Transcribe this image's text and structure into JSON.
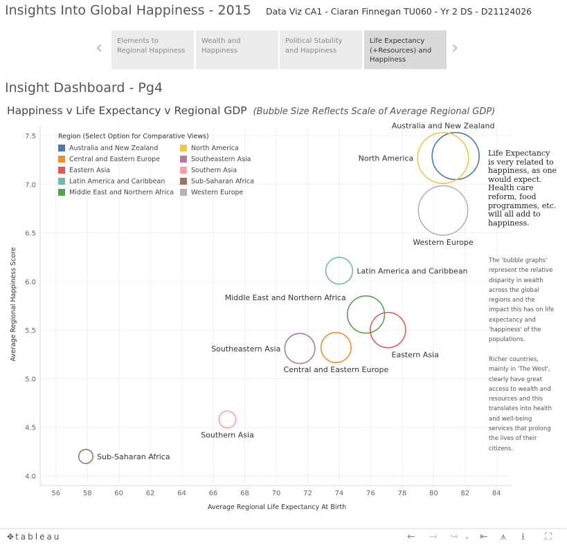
{
  "header": {
    "title": "Insights Into Global Happiness - 2015",
    "subtitle": "Data Viz CA1 - Ciaran Finnegan TU060 - Yr 2 DS - D21124026"
  },
  "nav": {
    "prev_icon": "chevron-left-icon",
    "next_icon": "chevron-right-icon",
    "tabs": [
      {
        "label": "Elements to Regional Happiness",
        "active": false
      },
      {
        "label": "Wealth and Happiness",
        "active": false
      },
      {
        "label": "Political Stability and Happiness",
        "active": false
      },
      {
        "label": "Life Expectancy (+Resources) and Happiness",
        "active": true
      }
    ]
  },
  "dashboard": {
    "title": "Insight Dashboard - Pg4",
    "chart_title": "Happiness v Life Expectancy v Regional GDP",
    "chart_note": "(Bubble Size Reflects Scale of Average Regional GDP)"
  },
  "legend": {
    "title": "Region  (Select Option for Comparative Views)",
    "items": [
      {
        "label": "Australia and New Zealand",
        "color": "#4e79a7"
      },
      {
        "label": "North America",
        "color": "#edc948"
      },
      {
        "label": "Central and Eastern Europe",
        "color": "#f28e2b"
      },
      {
        "label": "Southeastern Asia",
        "color": "#b07aa1"
      },
      {
        "label": "Eastern Asia",
        "color": "#e15759"
      },
      {
        "label": "Southern Asia",
        "color": "#ff9da7"
      },
      {
        "label": "Latin America and Caribbean",
        "color": "#76b7b2"
      },
      {
        "label": "Sub-Saharan Africa",
        "color": "#9c755f"
      },
      {
        "label": "Middle East and Northern Africa",
        "color": "#59a14f"
      },
      {
        "label": "Western Europe",
        "color": "#bab0ac"
      }
    ]
  },
  "chart_data": {
    "type": "scatter",
    "xlabel": "Average Regional Life Expectancy At Birth",
    "ylabel": "Average Regional Happiness Score",
    "xlim": [
      55,
      85
    ],
    "ylim": [
      3.9,
      7.6
    ],
    "xticks": [
      56,
      58,
      60,
      62,
      64,
      66,
      68,
      70,
      72,
      74,
      76,
      78,
      80,
      82,
      84
    ],
    "yticks": [
      4.0,
      4.5,
      5.0,
      5.5,
      6.0,
      6.5,
      7.0,
      7.5
    ],
    "grid": true,
    "legend_position": "top-left",
    "size_encodes": "Average Regional GDP (relative)",
    "series": [
      {
        "name": "Australia and New Zealand",
        "x": 81.4,
        "y": 7.29,
        "size": 1.0,
        "color": "#4e79a7"
      },
      {
        "name": "North America",
        "x": 80.6,
        "y": 7.27,
        "size": 1.08,
        "color": "#edc948"
      },
      {
        "name": "Western Europe",
        "x": 80.6,
        "y": 6.73,
        "size": 1.05,
        "color": "#bab0ac"
      },
      {
        "name": "Latin America and Caribbean",
        "x": 74.0,
        "y": 6.11,
        "size": 0.57,
        "color": "#76b7b2"
      },
      {
        "name": "Middle East and Northern Africa",
        "x": 75.7,
        "y": 5.66,
        "size": 0.79,
        "color": "#59a14f"
      },
      {
        "name": "Eastern Asia",
        "x": 77.1,
        "y": 5.5,
        "size": 0.75,
        "color": "#e15759"
      },
      {
        "name": "Southeastern Asia",
        "x": 71.5,
        "y": 5.31,
        "size": 0.64,
        "color": "#b07aa1"
      },
      {
        "name": "Central and Eastern Europe",
        "x": 73.8,
        "y": 5.32,
        "size": 0.64,
        "color": "#f28e2b"
      },
      {
        "name": "Southern Asia",
        "x": 66.9,
        "y": 4.58,
        "size": 0.36,
        "color": "#ff9da7"
      },
      {
        "name": "Sub-Saharan Africa",
        "x": 57.9,
        "y": 4.2,
        "size": 0.3,
        "color": "#9c755f"
      }
    ]
  },
  "notes": {
    "primary": "Life Expectancy is very related to happiness, as one would expect. Health care reform, food programmes, etc. will all add to happiness.",
    "secondary": "The 'bubble graphs' represent the relative disparity in wealth across the global regions and the impact this has on life expectancy and 'happiness' of the populations.",
    "tertiary": "Richer countries, mainly in 'The West', clearly have great access to wealth and resources and this translates into health and well-being services that prolong the lives of their citizens."
  },
  "footer": {
    "logo_text": "tableau",
    "logo_icon": "tableau-plus-icon",
    "controls": [
      "undo-icon",
      "redo-icon",
      "revert-icon",
      "dropdown-icon",
      "reset-icon",
      "share-icon",
      "download-icon",
      "fullscreen-icon"
    ]
  }
}
